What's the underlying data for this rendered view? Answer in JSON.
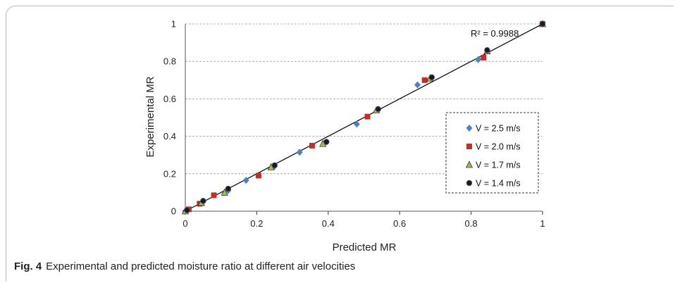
{
  "chart_data": {
    "type": "scatter",
    "xlabel": "Predicted MR",
    "ylabel": "Experimental MR",
    "xlim": [
      0,
      1
    ],
    "ylim": [
      0,
      1
    ],
    "x_ticks": [
      "0",
      "0.2",
      "0.4",
      "0.6",
      "0.8",
      "1"
    ],
    "y_ticks": [
      "0",
      "0.2",
      "0.4",
      "0.6",
      "0.8",
      "1"
    ],
    "grid": "horizontal dashed",
    "legend_position": "right",
    "fit_line": {
      "from": [
        0,
        0
      ],
      "to": [
        1,
        1
      ]
    },
    "annotation": "R² = 0.9988",
    "series": [
      {
        "name": "V = 2.5 m/s",
        "marker": "diamond",
        "color": "#4f81bd",
        "points": [
          [
            0.0,
            0.0
          ],
          [
            0.05,
            0.05
          ],
          [
            0.12,
            0.11
          ],
          [
            0.17,
            0.165
          ],
          [
            0.25,
            0.24
          ],
          [
            0.32,
            0.315
          ],
          [
            0.395,
            0.37
          ],
          [
            0.48,
            0.465
          ],
          [
            0.54,
            0.545
          ],
          [
            0.65,
            0.675
          ],
          [
            0.82,
            0.81
          ],
          [
            1.0,
            1.0
          ]
        ]
      },
      {
        "name": "V = 2.0 m/s",
        "marker": "square",
        "color": "#c0302a",
        "points": [
          [
            0.01,
            0.01
          ],
          [
            0.04,
            0.04
          ],
          [
            0.08,
            0.085
          ],
          [
            0.205,
            0.19
          ],
          [
            0.355,
            0.35
          ],
          [
            0.51,
            0.505
          ],
          [
            0.67,
            0.7
          ],
          [
            0.835,
            0.82
          ],
          [
            1.0,
            1.0
          ]
        ]
      },
      {
        "name": "V = 1.7 m/s",
        "marker": "triangle",
        "color": "#9bbb59",
        "points": [
          [
            0.0,
            0.0
          ],
          [
            0.045,
            0.045
          ],
          [
            0.11,
            0.1
          ],
          [
            0.24,
            0.235
          ],
          [
            0.385,
            0.36
          ],
          [
            0.535,
            0.54
          ],
          [
            0.685,
            0.71
          ],
          [
            0.845,
            0.855
          ],
          [
            1.0,
            1.0
          ]
        ]
      },
      {
        "name": "V = 1.4 m/s",
        "marker": "circle",
        "color": "#1a1a2e",
        "points": [
          [
            0.005,
            0.005
          ],
          [
            0.05,
            0.055
          ],
          [
            0.12,
            0.12
          ],
          [
            0.25,
            0.245
          ],
          [
            0.395,
            0.37
          ],
          [
            0.54,
            0.545
          ],
          [
            0.69,
            0.715
          ],
          [
            0.845,
            0.86
          ],
          [
            1.0,
            1.0
          ]
        ]
      }
    ]
  },
  "caption": {
    "label": "Fig. 4",
    "text": "Experimental and predicted moisture ratio at different air velocities"
  }
}
